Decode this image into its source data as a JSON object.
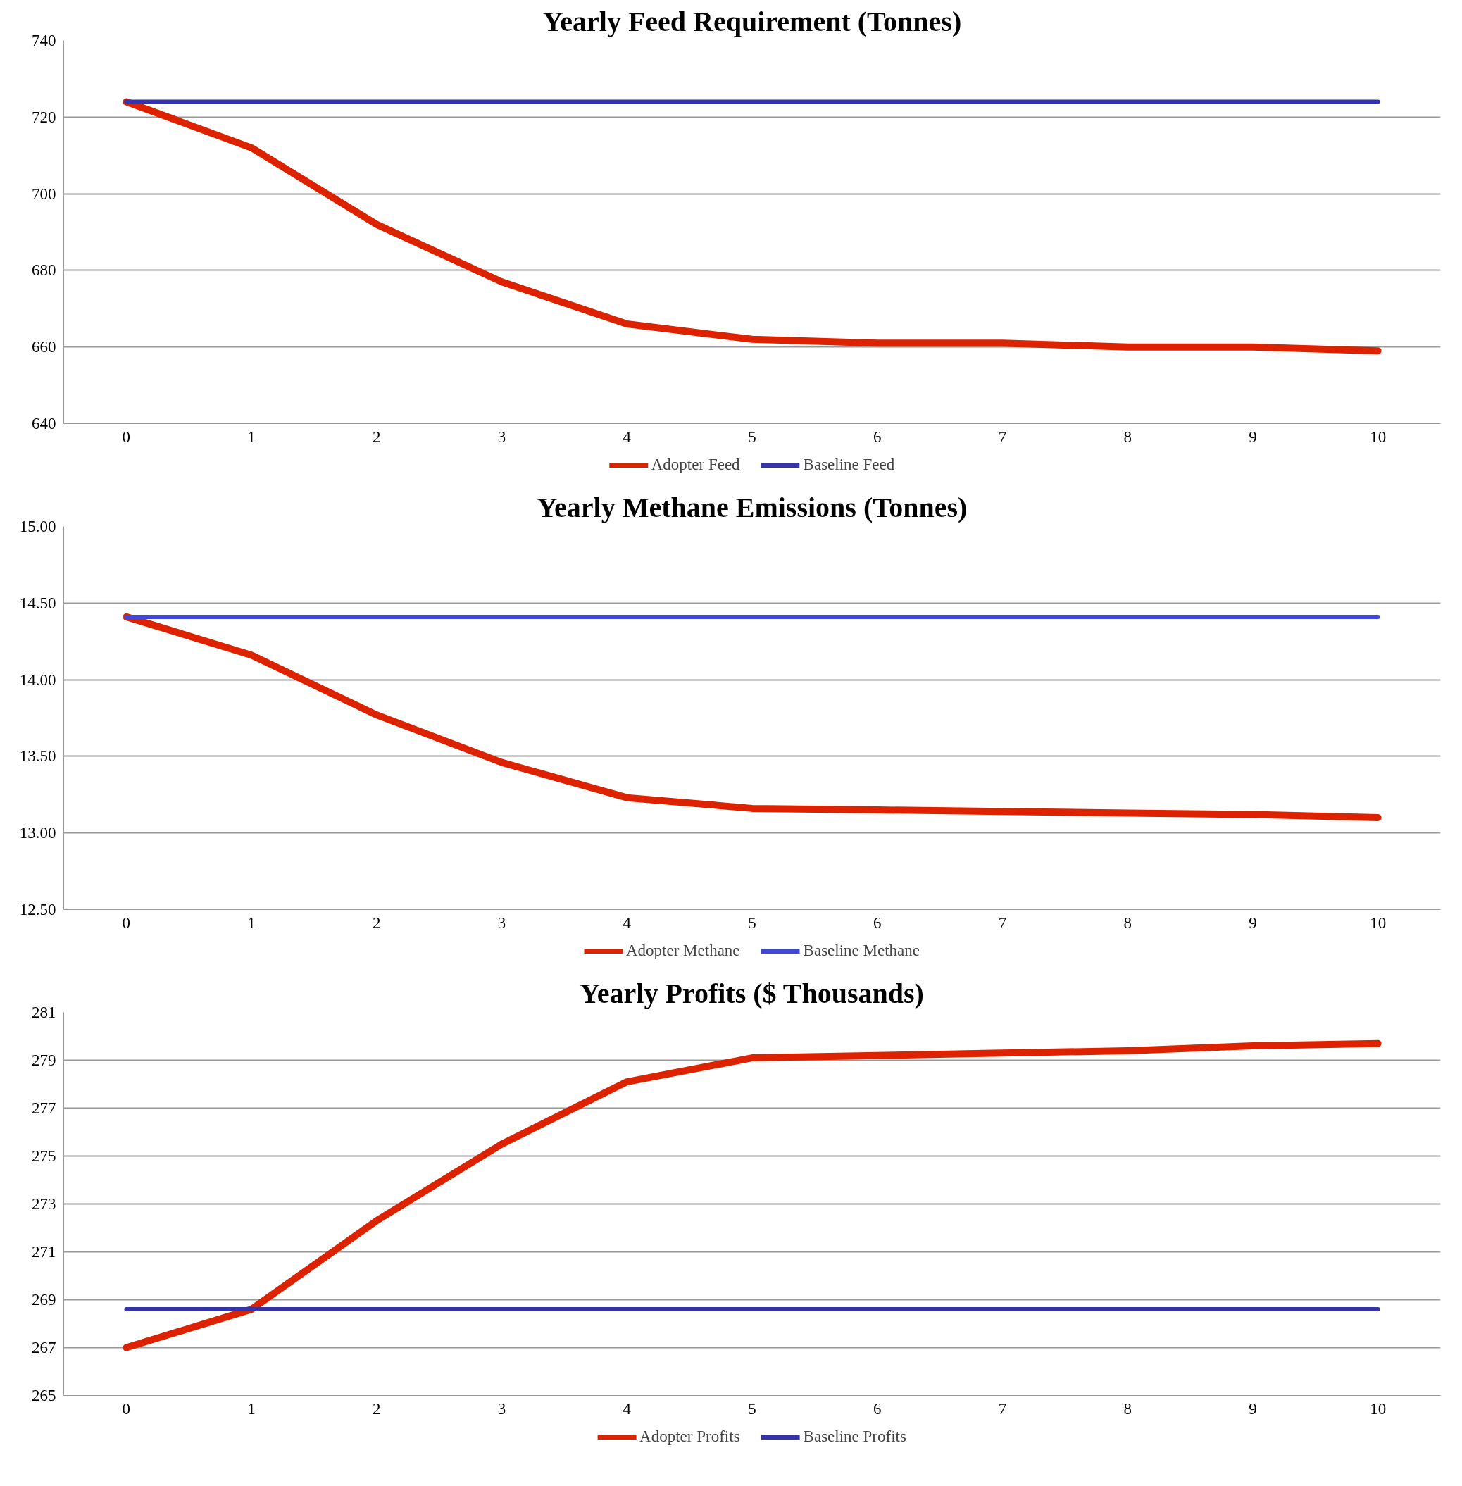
{
  "chart_data": [
    {
      "type": "line",
      "title": "Yearly Feed Requirement (Tonnes)",
      "categories": [
        "0",
        "1",
        "2",
        "3",
        "4",
        "5",
        "6",
        "7",
        "8",
        "9",
        "10"
      ],
      "ylim": [
        640,
        740
      ],
      "yticks": [
        640,
        660,
        680,
        700,
        720,
        740
      ],
      "grid": "y",
      "legend": "bottom",
      "series": [
        {
          "name": "Adopter Feed",
          "color": "#dd2200",
          "values": [
            724,
            712,
            692,
            677,
            666,
            662,
            661,
            661,
            660,
            660,
            659
          ]
        },
        {
          "name": "Baseline Feed",
          "color": "#3333aa",
          "values": [
            724,
            724,
            724,
            724,
            724,
            724,
            724,
            724,
            724,
            724,
            724
          ]
        }
      ]
    },
    {
      "type": "line",
      "title": "Yearly Methane Emissions (Tonnes)",
      "categories": [
        "0",
        "1",
        "2",
        "3",
        "4",
        "5",
        "6",
        "7",
        "8",
        "9",
        "10"
      ],
      "ylim": [
        12.5,
        15
      ],
      "yticks": [
        {
          "value": 12.5,
          "label": "12.50"
        },
        {
          "value": 13,
          "label": "13.00"
        },
        {
          "value": 13.5,
          "label": "13.50"
        },
        {
          "value": 14,
          "label": "14.00"
        },
        {
          "value": 14.5,
          "label": "14.50"
        },
        {
          "value": 15,
          "label": "15.00"
        }
      ],
      "grid": "y",
      "legend": "bottom",
      "series": [
        {
          "name": "Adopter Methane",
          "color": "#dd2200",
          "values": [
            14.41,
            14.16,
            13.77,
            13.46,
            13.23,
            13.16,
            13.15,
            13.14,
            13.13,
            13.12,
            13.1
          ]
        },
        {
          "name": "Baseline Methane",
          "color": "#3f48d8",
          "values": [
            14.41,
            14.41,
            14.41,
            14.41,
            14.41,
            14.41,
            14.41,
            14.41,
            14.41,
            14.41,
            14.41
          ]
        }
      ]
    },
    {
      "type": "line",
      "title": "Yearly Profits ($ Thousands)",
      "categories": [
        "0",
        "1",
        "2",
        "3",
        "4",
        "5",
        "6",
        "7",
        "8",
        "9",
        "10"
      ],
      "ylim": [
        265,
        281
      ],
      "yticks": [
        265,
        267,
        269,
        271,
        273,
        275,
        277,
        279,
        281
      ],
      "grid": "y",
      "legend": "bottom",
      "series": [
        {
          "name": "Adopter Profits",
          "color": "#dd2200",
          "values": [
            267,
            268.6,
            272.3,
            275.5,
            278.1,
            279.1,
            279.2,
            279.3,
            279.4,
            279.6,
            279.7
          ]
        },
        {
          "name": "Baseline Profits",
          "color": "#3333aa",
          "values": [
            268.6,
            268.6,
            268.6,
            268.6,
            268.6,
            268.6,
            268.6,
            268.6,
            268.6,
            268.6,
            268.6
          ]
        }
      ]
    }
  ]
}
